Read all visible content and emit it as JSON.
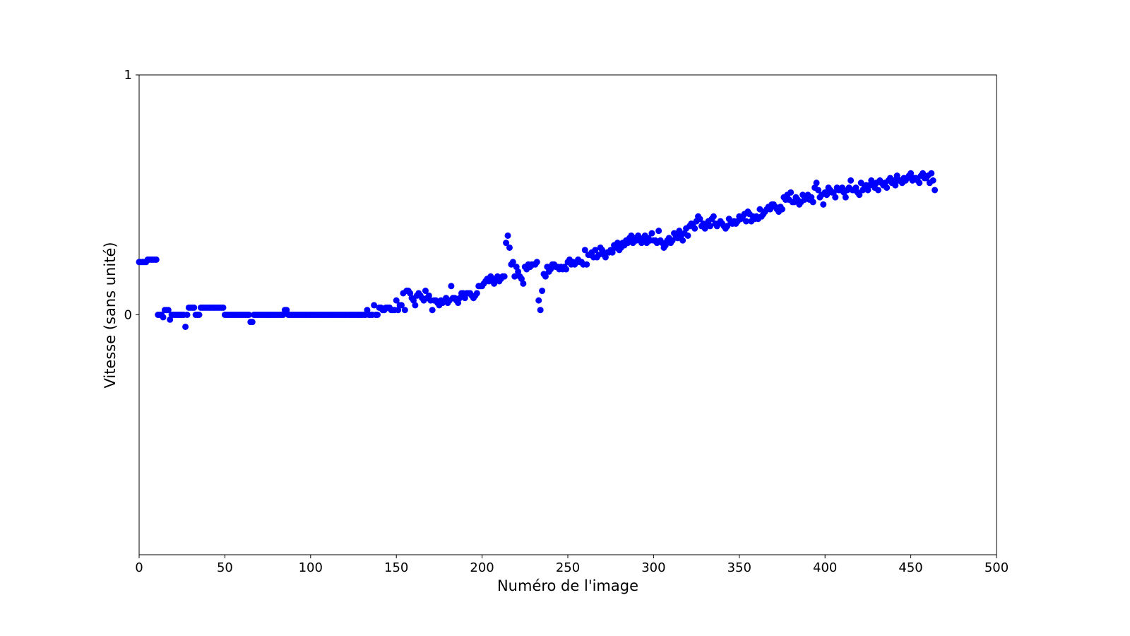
{
  "chart_data": {
    "type": "scatter",
    "x_label": "Numéro de l'image",
    "y_label": "Vitesse (sans unité)",
    "color": "#0000ff",
    "xlim": [
      0,
      500
    ],
    "xticks": [
      0,
      50,
      100,
      150,
      200,
      250,
      300,
      350,
      400,
      450,
      500
    ],
    "ylim": [
      -1,
      1
    ],
    "yticks": [
      0,
      1
    ],
    "grid": false,
    "x": [
      0,
      1,
      2,
      3,
      4,
      5,
      6,
      7,
      8,
      9,
      10,
      11,
      12,
      13,
      14,
      15,
      16,
      17,
      18,
      19,
      20,
      21,
      22,
      23,
      24,
      25,
      26,
      27,
      28,
      29,
      30,
      31,
      32,
      33,
      34,
      35,
      36,
      37,
      38,
      39,
      40,
      41,
      42,
      43,
      44,
      45,
      46,
      47,
      48,
      49,
      50,
      51,
      52,
      53,
      54,
      55,
      56,
      57,
      58,
      59,
      60,
      61,
      62,
      63,
      64,
      65,
      66,
      67,
      68,
      69,
      70,
      71,
      72,
      73,
      74,
      75,
      76,
      77,
      78,
      79,
      80,
      81,
      82,
      83,
      84,
      85,
      86,
      87,
      88,
      89,
      90,
      91,
      92,
      93,
      94,
      95,
      96,
      97,
      98,
      99,
      100,
      101,
      102,
      103,
      104,
      105,
      106,
      107,
      108,
      109,
      110,
      111,
      112,
      113,
      114,
      115,
      116,
      117,
      118,
      119,
      120,
      121,
      122,
      123,
      124,
      125,
      126,
      127,
      128,
      129,
      130,
      131,
      132,
      133,
      134,
      135,
      136,
      137,
      138,
      139,
      140,
      141,
      142,
      143,
      144,
      145,
      146,
      147,
      148,
      149,
      150,
      151,
      152,
      153,
      154,
      155,
      156,
      157,
      158,
      159,
      160,
      161,
      162,
      163,
      164,
      165,
      166,
      167,
      168,
      169,
      170,
      171,
      172,
      173,
      174,
      175,
      176,
      177,
      178,
      179,
      180,
      181,
      182,
      183,
      184,
      185,
      186,
      187,
      188,
      189,
      190,
      191,
      192,
      193,
      194,
      195,
      196,
      197,
      198,
      199,
      200,
      201,
      202,
      203,
      204,
      205,
      206,
      207,
      208,
      209,
      210,
      211,
      212,
      213,
      214,
      215,
      216,
      217,
      218,
      219,
      220,
      221,
      222,
      223,
      224,
      225,
      226,
      227,
      228,
      229,
      230,
      231,
      232,
      233,
      234,
      235,
      236,
      237,
      238,
      239,
      240,
      241,
      242,
      243,
      244,
      245,
      246,
      247,
      248,
      249,
      250,
      251,
      252,
      253,
      254,
      255,
      256,
      257,
      258,
      259,
      260,
      261,
      262,
      263,
      264,
      265,
      266,
      267,
      268,
      269,
      270,
      271,
      272,
      273,
      274,
      275,
      276,
      277,
      278,
      279,
      280,
      281,
      282,
      283,
      284,
      285,
      286,
      287,
      288,
      289,
      290,
      291,
      292,
      293,
      294,
      295,
      296,
      297,
      298,
      299,
      300,
      301,
      302,
      303,
      304,
      305,
      306,
      307,
      308,
      309,
      310,
      311,
      312,
      313,
      314,
      315,
      316,
      317,
      318,
      319,
      320,
      321,
      322,
      323,
      324,
      325,
      326,
      327,
      328,
      329,
      330,
      331,
      332,
      333,
      334,
      335,
      336,
      337,
      338,
      339,
      340,
      341,
      342,
      343,
      344,
      345,
      346,
      347,
      348,
      349,
      350,
      351,
      352,
      353,
      354,
      355,
      356,
      357,
      358,
      359,
      360,
      361,
      362,
      363,
      364,
      365,
      366,
      367,
      368,
      369,
      370,
      371,
      372,
      373,
      374,
      375,
      376,
      377,
      378,
      379,
      380,
      381,
      382,
      383,
      384,
      385,
      386,
      387,
      388,
      389,
      390,
      391,
      392,
      393,
      394,
      395,
      396,
      397,
      398,
      399,
      400,
      401,
      402,
      403,
      404,
      405,
      406,
      407,
      408,
      409,
      410,
      411,
      412,
      413,
      414,
      415,
      416,
      417,
      418,
      419,
      420,
      421,
      422,
      423,
      424,
      425,
      426,
      427,
      428,
      429,
      430,
      431,
      432,
      433,
      434,
      435,
      436,
      437,
      438,
      439,
      440,
      441,
      442,
      443,
      444,
      445,
      446,
      447,
      448,
      449,
      450,
      451,
      452,
      453,
      454,
      455,
      456,
      457,
      458,
      459,
      460,
      461,
      462,
      463,
      464
    ],
    "values": [
      0.22,
      0.22,
      0.22,
      0.22,
      0.22,
      0.23,
      0.23,
      0.23,
      0.23,
      0.23,
      0.23,
      0,
      0,
      0,
      -0.01,
      0.02,
      0.02,
      0.02,
      -0.02,
      0,
      0,
      0,
      0,
      0,
      0,
      0,
      0,
      -0.05,
      0,
      0.03,
      0.03,
      0.03,
      0.03,
      0,
      0,
      0,
      0.03,
      0.03,
      0.03,
      0.03,
      0.03,
      0.03,
      0.03,
      0.03,
      0.03,
      0.03,
      0.03,
      0.03,
      0.03,
      0.03,
      0,
      0,
      0,
      0,
      0,
      0,
      0,
      0,
      0,
      0,
      0,
      0,
      0,
      0,
      0,
      -0.03,
      -0.03,
      0,
      0,
      0,
      0,
      0,
      0,
      0,
      0,
      0,
      0,
      0,
      0,
      0,
      0,
      0,
      0,
      0,
      0,
      0.02,
      0.02,
      0,
      0,
      0,
      0,
      0,
      0,
      0,
      0,
      0,
      0,
      0,
      0,
      0,
      0,
      0,
      0,
      0,
      0,
      0,
      0,
      0,
      0,
      0,
      0,
      0,
      0,
      0,
      0,
      0,
      0,
      0,
      0,
      0,
      0,
      0,
      0,
      0,
      0,
      0,
      0,
      0,
      0,
      0,
      0,
      0,
      0,
      0.02,
      0,
      0,
      0,
      0.04,
      0,
      0,
      0.03,
      0.03,
      0.02,
      0.02,
      0.03,
      0.03,
      0.03,
      0.02,
      0.02,
      0.02,
      0.06,
      0.02,
      0.04,
      0.04,
      0.09,
      0.02,
      0.1,
      0.1,
      0.09,
      0.07,
      0.06,
      0.04,
      0.08,
      0.09,
      0.08,
      0.07,
      0.06,
      0.1,
      0.07,
      0.08,
      0.06,
      0.02,
      0.06,
      0.06,
      0.05,
      0.04,
      0.06,
      0.05,
      0.06,
      0.07,
      0.05,
      0.06,
      0.12,
      0.07,
      0.07,
      0.06,
      0.05,
      0.07,
      0.09,
      0.09,
      0.07,
      0.09,
      0.09,
      0.09,
      0.08,
      0.07,
      0.08,
      0.09,
      0.12,
      0.12,
      0.12,
      0.13,
      0.14,
      0.15,
      0.14,
      0.16,
      0.15,
      0.13,
      0.15,
      0.16,
      0.14,
      0.15,
      0.16,
      0.16,
      0.3,
      0.33,
      0.28,
      0.21,
      0.22,
      0.16,
      0.2,
      0.18,
      0.16,
      0.15,
      0.13,
      0.2,
      0.19,
      0.21,
      0.2,
      0.21,
      0.21,
      0.21,
      0.22,
      0.06,
      0.02,
      0.1,
      0.17,
      0.16,
      0.2,
      0.18,
      0.19,
      0.21,
      0.21,
      0.2,
      0.2,
      0.19,
      0.2,
      0.19,
      0.2,
      0.19,
      0.22,
      0.23,
      0.21,
      0.22,
      0.21,
      0.22,
      0.23,
      0.22,
      0.22,
      0.21,
      0.27,
      0.21,
      0.25,
      0.25,
      0.26,
      0.24,
      0.27,
      0.24,
      0.25,
      0.28,
      0.27,
      0.25,
      0.24,
      0.26,
      0.26,
      0.27,
      0.26,
      0.29,
      0.28,
      0.3,
      0.27,
      0.28,
      0.3,
      0.29,
      0.31,
      0.3,
      0.32,
      0.33,
      0.3,
      0.32,
      0.31,
      0.33,
      0.32,
      0.3,
      0.31,
      0.33,
      0.3,
      0.32,
      0.31,
      0.34,
      0.31,
      0.31,
      0.3,
      0.35,
      0.31,
      0.3,
      0.28,
      0.29,
      0.31,
      0.32,
      0.3,
      0.31,
      0.34,
      0.33,
      0.32,
      0.35,
      0.33,
      0.31,
      0.34,
      0.36,
      0.33,
      0.37,
      0.38,
      0.37,
      0.36,
      0.39,
      0.41,
      0.4,
      0.37,
      0.38,
      0.36,
      0.38,
      0.39,
      0.37,
      0.4,
      0.41,
      0.38,
      0.37,
      0.38,
      0.39,
      0.38,
      0.37,
      0.36,
      0.37,
      0.4,
      0.39,
      0.38,
      0.39,
      0.38,
      0.39,
      0.41,
      0.4,
      0.41,
      0.42,
      0.39,
      0.43,
      0.42,
      0.39,
      0.41,
      0.4,
      0.41,
      0.4,
      0.44,
      0.41,
      0.42,
      0.43,
      0.44,
      0.45,
      0.44,
      0.46,
      0.46,
      0.45,
      0.44,
      0.43,
      0.45,
      0.44,
      0.49,
      0.48,
      0.5,
      0.48,
      0.51,
      0.47,
      0.47,
      0.49,
      0.48,
      0.46,
      0.47,
      0.5,
      0.48,
      0.49,
      0.5,
      0.48,
      0.49,
      0.47,
      0.53,
      0.55,
      0.52,
      0.49,
      0.5,
      0.46,
      0.51,
      0.5,
      0.53,
      0.52,
      0.51,
      0.51,
      0.49,
      0.53,
      0.52,
      0.52,
      0.53,
      0.51,
      0.49,
      0.52,
      0.53,
      0.56,
      0.52,
      0.52,
      0.53,
      0.51,
      0.5,
      0.55,
      0.52,
      0.53,
      0.54,
      0.52,
      0.54,
      0.56,
      0.54,
      0.53,
      0.55,
      0.52,
      0.56,
      0.55,
      0.54,
      0.55,
      0.53,
      0.56,
      0.57,
      0.55,
      0.56,
      0.54,
      0.58,
      0.56,
      0.56,
      0.55,
      0.57,
      0.56,
      0.57,
      0.58,
      0.59,
      0.56,
      0.57,
      0.57,
      0.56,
      0.55,
      0.58,
      0.59,
      0.57,
      0.57,
      0.58,
      0.55,
      0.59,
      0.56,
      0.52
    ]
  }
}
